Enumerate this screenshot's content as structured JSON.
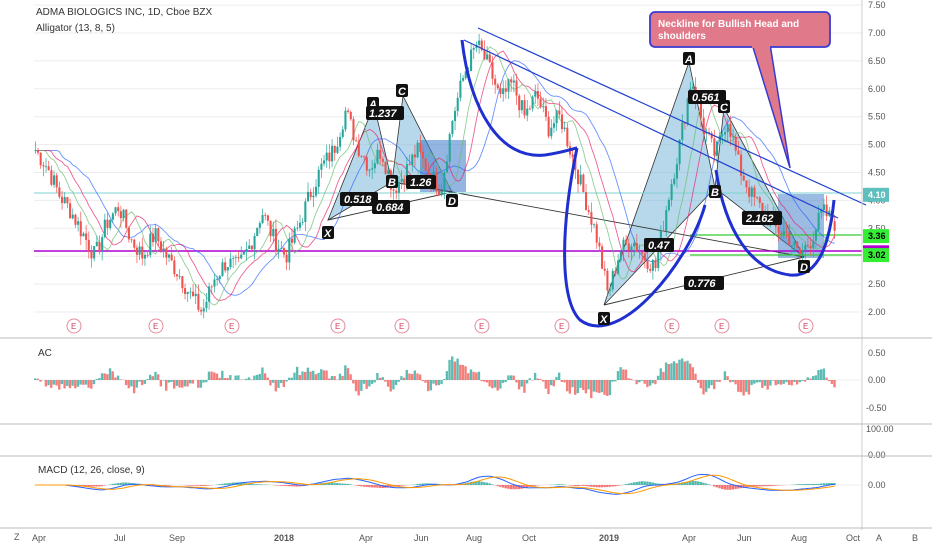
{
  "header": {
    "symbol_title": "ADMA BIOLOGICS INC, 1D, Cboe BZX",
    "indicator": "Alligator (13, 8, 5)"
  },
  "annotation": {
    "callout": [
      "Neckline for Bullish Head and",
      "shoulders"
    ]
  },
  "harmonic_labels": {
    "left": {
      "points": [
        "X",
        "A",
        "B",
        "C",
        "D"
      ],
      "ratios": [
        "1.237",
        "0.518",
        "0.684",
        "1.26"
      ]
    },
    "right": {
      "points": [
        "X",
        "A",
        "B",
        "C",
        "D"
      ],
      "ratios": [
        "0.561",
        "0.47",
        "0.776",
        "2.162"
      ]
    }
  },
  "price_badges": [
    {
      "label": "4.10",
      "value": 4.1,
      "bg": "#5fbfbf",
      "fg": "#ffffff"
    },
    {
      "label": "3.36",
      "value": 3.36,
      "bg": "#33ee33",
      "fg": "#000000"
    },
    {
      "label": "3.07",
      "value": 3.07,
      "bg": "#b000d0",
      "fg": "#ffffff"
    },
    {
      "label": "3.02",
      "value": 3.02,
      "bg": "#33ee33",
      "fg": "#000000"
    }
  ],
  "earnings_marker": "E",
  "panels": {
    "ac": {
      "label": "AC",
      "ticks": [
        "0.50",
        "0.00",
        "-0.50"
      ]
    },
    "rsi": {
      "ticks": [
        "100.00",
        "0.00"
      ]
    },
    "macd": {
      "label": "MACD (12, 26, close, 9)",
      "ticks": [
        "0.00"
      ]
    }
  },
  "time_axis": {
    "labels": [
      "Apr",
      "Jul",
      "Sep",
      "2018",
      "Apr",
      "Jun",
      "Aug",
      "Oct",
      "2019",
      "Apr",
      "Jun",
      "Aug",
      "Oct"
    ],
    "corner_left": "Z",
    "corner_a": "A",
    "corner_b": "B"
  },
  "colors": {
    "up": "#26a69a",
    "down": "#ef5350",
    "pattern_fill": "#7ab8d8",
    "channel": "#1f3fd0",
    "neckline_box": "#3060d0",
    "magenta_line": "#b000d0",
    "callout_bg": "#e07a8a",
    "callout_border": "#3a3ad0"
  },
  "chart_data": {
    "type": "candlestick",
    "title": "ADMA BIOLOGICS INC, 1D, Cboe BZX",
    "y_ticks": [
      7.5,
      7.0,
      6.5,
      6.0,
      5.5,
      5.0,
      4.5,
      4.0,
      3.5,
      3.0,
      2.5,
      2.0
    ],
    "ylim": [
      1.6,
      7.6
    ],
    "series": [
      {
        "values": [
          4.9,
          4.6,
          4.1,
          3.8,
          3.4,
          3.0,
          3.6,
          3.9,
          3.3,
          3.0,
          3.4,
          3.0,
          2.7,
          2.3,
          2.0,
          2.6,
          2.9,
          2.8,
          3.2,
          3.8,
          3.3,
          3.0,
          3.5,
          4.1,
          4.6,
          4.9,
          5.6,
          5.0,
          4.6,
          4.9,
          4.2,
          4.5,
          4.9,
          4.5,
          4.2,
          5.5,
          6.3,
          6.8,
          6.4,
          5.8,
          6.1,
          5.5,
          5.9,
          5.3,
          5.5,
          4.8,
          4.1,
          3.4,
          2.3,
          3.1,
          3.3,
          3.0,
          2.8,
          4.0,
          5.0,
          6.2,
          5.3,
          4.8,
          5.5,
          4.6,
          4.1,
          3.8,
          3.5,
          3.4,
          3.0,
          3.3,
          3.8,
          3.6
        ]
      }
    ]
  }
}
